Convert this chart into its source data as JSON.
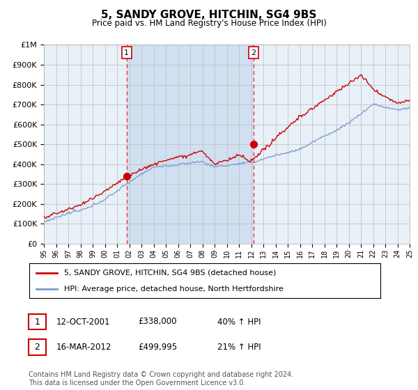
{
  "title": "5, SANDY GROVE, HITCHIN, SG4 9BS",
  "subtitle": "Price paid vs. HM Land Registry's House Price Index (HPI)",
  "ylabel_values": [
    "£0",
    "£100K",
    "£200K",
    "£300K",
    "£400K",
    "£500K",
    "£600K",
    "£700K",
    "£800K",
    "£900K",
    "£1M"
  ],
  "ylim": [
    0,
    1000000
  ],
  "yticks": [
    0,
    100000,
    200000,
    300000,
    400000,
    500000,
    600000,
    700000,
    800000,
    900000,
    1000000
  ],
  "x_start_year": 1995,
  "x_end_year": 2025,
  "sale1_date": 2001.79,
  "sale1_price": 338000,
  "sale2_date": 2012.21,
  "sale2_price": 499995,
  "legend_line1": "5, SANDY GROVE, HITCHIN, SG4 9BS (detached house)",
  "legend_line2": "HPI: Average price, detached house, North Hertfordshire",
  "footnote": "Contains HM Land Registry data © Crown copyright and database right 2024.\nThis data is licensed under the Open Government Licence v3.0.",
  "red_color": "#cc0000",
  "blue_color": "#7799cc",
  "bg_color": "#e8f0f8",
  "bg_band_color": "#d0e0f0",
  "grid_color": "#bbbbbb",
  "sale_line_color": "#ee3333"
}
